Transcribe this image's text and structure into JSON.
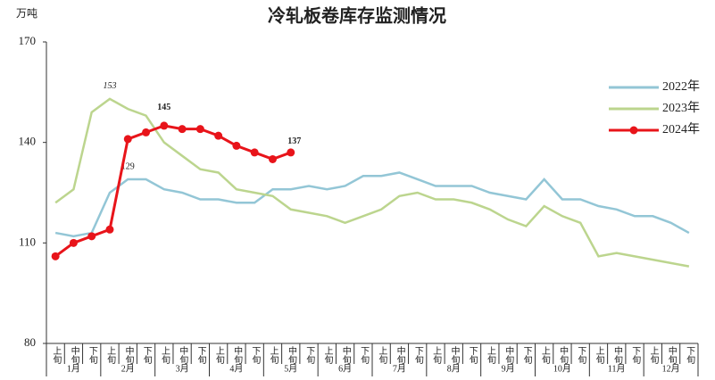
{
  "chart_data": {
    "type": "line",
    "title": "冷轧板卷库存监测情况",
    "y_label": "万吨",
    "categories": [
      "上旬",
      "中旬",
      "下旬",
      "上旬",
      "中旬",
      "下旬",
      "上旬",
      "中旬",
      "下旬",
      "上旬",
      "中旬",
      "下旬",
      "上旬",
      "中旬",
      "下旬",
      "上旬",
      "中旬",
      "下旬",
      "上旬",
      "中旬",
      "下旬",
      "上旬",
      "中旬",
      "下旬",
      "上旬",
      "中旬",
      "下旬",
      "上旬",
      "中旬",
      "下旬",
      "上旬",
      "中旬",
      "下旬",
      "上旬",
      "中旬",
      "下旬"
    ],
    "groups": [
      "1月",
      "2月",
      "3月",
      "4月",
      "5月",
      "6月",
      "7月",
      "8月",
      "9月",
      "10月",
      "11月",
      "12月"
    ],
    "ylim": [
      80,
      170
    ],
    "yticks": [
      80,
      110,
      140,
      170
    ],
    "grid": false,
    "legend": "upper right",
    "series": [
      {
        "name": "2022年",
        "color": "#93c6d6",
        "marker": false,
        "values": [
          113,
          112,
          113,
          125,
          129,
          129,
          126,
          125,
          123,
          123,
          122,
          122,
          126,
          126,
          127,
          126,
          127,
          130,
          130,
          131,
          129,
          127,
          127,
          127,
          125,
          124,
          123,
          129,
          123,
          123,
          121,
          120,
          118,
          118,
          116,
          113
        ]
      },
      {
        "name": "2023年",
        "color": "#bcd58e",
        "marker": false,
        "values": [
          122,
          126,
          149,
          153,
          150,
          148,
          140,
          136,
          132,
          131,
          126,
          125,
          124,
          120,
          119,
          118,
          116,
          118,
          120,
          124,
          125,
          123,
          123,
          122,
          120,
          117,
          115,
          121,
          118,
          116,
          106,
          107,
          106,
          105,
          104,
          103
        ]
      },
      {
        "name": "2024年",
        "color": "#e8141a",
        "marker": true,
        "values": [
          106,
          110,
          112,
          114,
          141,
          143,
          145,
          144,
          144,
          142,
          139,
          137,
          135,
          137,
          null,
          null,
          null,
          null,
          null,
          null,
          null,
          null,
          null,
          null,
          null,
          null,
          null,
          null,
          null,
          null,
          null,
          null,
          null,
          null,
          null,
          null
        ]
      }
    ]
  }
}
